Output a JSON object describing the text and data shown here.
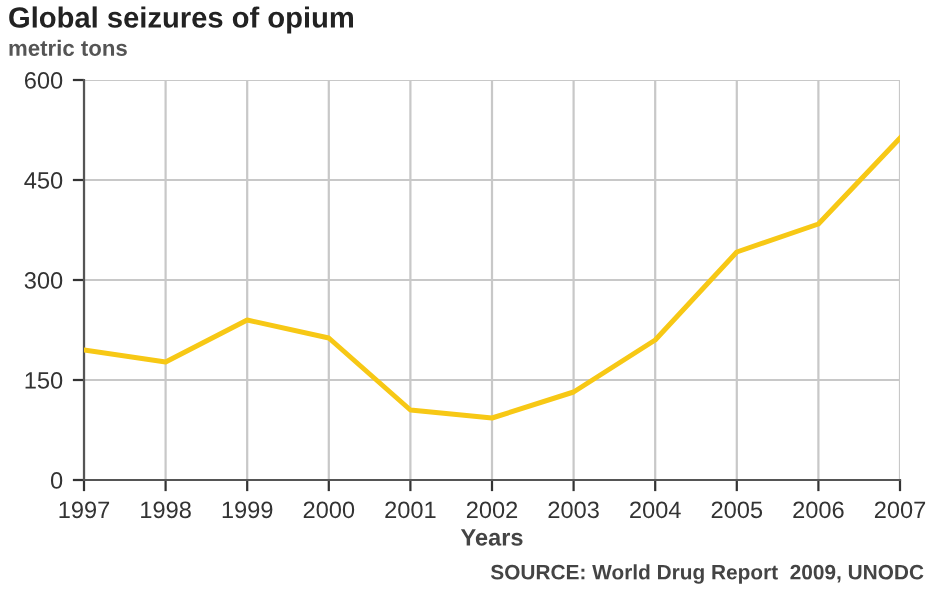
{
  "chart_data": {
    "type": "line",
    "title": "Global seizures of opium",
    "ylabel": "metric tons",
    "xlabel": "Years",
    "x": [
      1997,
      1998,
      1999,
      2000,
      2001,
      2002,
      2003,
      2004,
      2005,
      2006,
      2007
    ],
    "series": [
      {
        "color": "#f7c815",
        "values": [
          195,
          177,
          240,
          213,
          105,
          93,
          132,
          210,
          342,
          384,
          513
        ]
      }
    ],
    "xlim": [
      1997,
      2007
    ],
    "xticks": [
      1997,
      1998,
      1999,
      2000,
      2001,
      2002,
      2003,
      2004,
      2005,
      2006,
      2007
    ],
    "ylim": [
      0,
      600
    ],
    "yticks": [
      0,
      150,
      300,
      450,
      600
    ],
    "grid": true,
    "marker": "none",
    "line_style": "solid",
    "annotations": [
      "SOURCE: World Drug Report  2009, UNODC"
    ]
  }
}
